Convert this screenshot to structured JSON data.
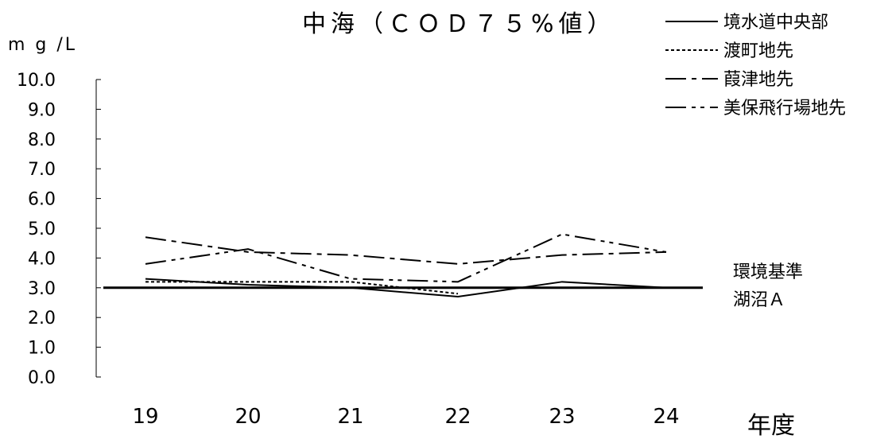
{
  "chart_data": {
    "type": "line",
    "title": "中海（ＣＯＤ７５%値）",
    "unit_label": "m g /L",
    "xlabel": "年度",
    "categories": [
      "19",
      "20",
      "21",
      "22",
      "23",
      "24"
    ],
    "ylim": [
      0,
      10
    ],
    "y_ticks": [
      "0.0",
      "1.0",
      "2.0",
      "3.0",
      "4.0",
      "5.0",
      "6.0",
      "7.0",
      "8.0",
      "9.0",
      "10.0"
    ],
    "grid": false,
    "legend_position": "top-right",
    "series": [
      {
        "name": "境水道中央部",
        "dash": "solid",
        "values": [
          3.3,
          3.1,
          3.0,
          2.7,
          3.2,
          3.0
        ]
      },
      {
        "name": "渡町地先",
        "dash": "dashed",
        "values": [
          3.2,
          3.2,
          3.2,
          2.8,
          null,
          null
        ]
      },
      {
        "name": "葭津地先",
        "dash": "dashdot",
        "values": [
          4.7,
          4.2,
          4.1,
          3.8,
          4.1,
          4.2
        ]
      },
      {
        "name": "美保飛行場地先",
        "dash": "dashdotdot",
        "values": [
          3.8,
          4.3,
          3.3,
          3.2,
          4.8,
          4.2
        ]
      }
    ],
    "reference_line": {
      "value": 3.0,
      "label_line1": "環境基準",
      "label_line2": "湖沼Ａ"
    }
  }
}
